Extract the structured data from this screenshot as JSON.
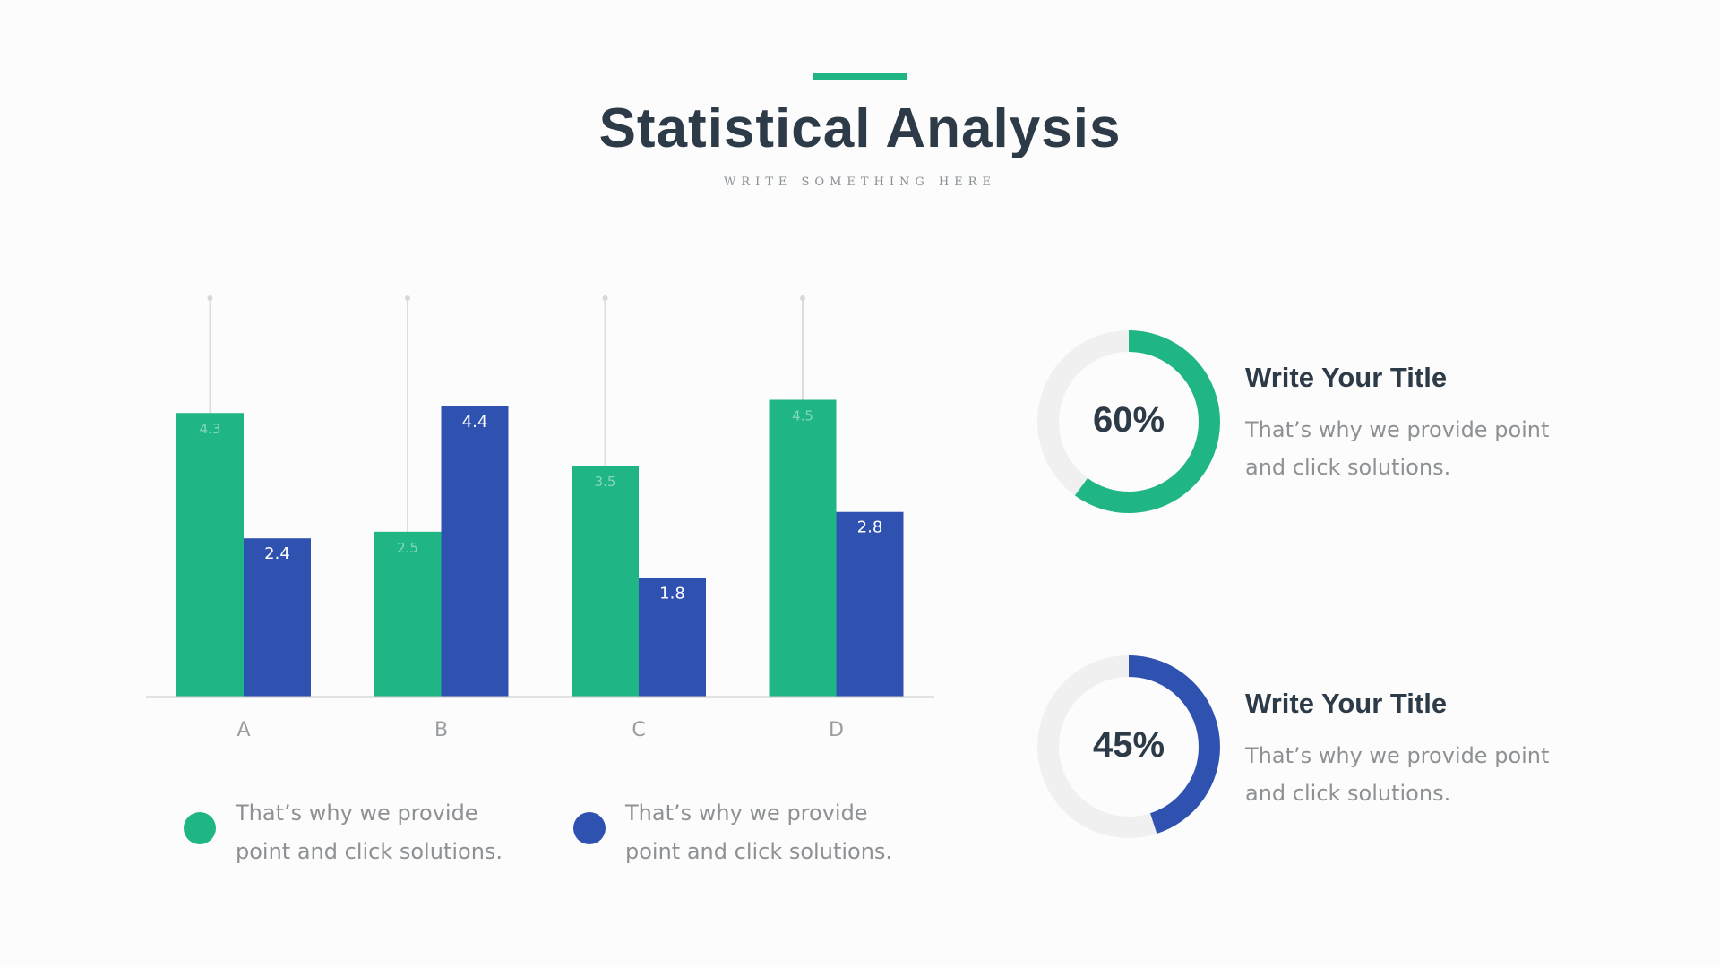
{
  "header": {
    "title": "Statistical Analysis",
    "subtitle": "WRITE SOMETHING HERE"
  },
  "colors": {
    "accent": "#1fb585",
    "green": "#1fb585",
    "blue": "#2f52b0",
    "title": "#2d3a47",
    "muted": "#8e9194",
    "track": "#f0f0f0"
  },
  "chart_data": {
    "type": "bar",
    "categories": [
      "A",
      "B",
      "C",
      "D"
    ],
    "series": [
      {
        "values": [
          4.3,
          2.5,
          3.5,
          4.5
        ],
        "color": "#1fb585"
      },
      {
        "values": [
          2.4,
          4.4,
          1.8,
          2.8
        ],
        "color": "#2f52b0"
      }
    ],
    "ylim": [
      0,
      6
    ],
    "grid": false,
    "xlabel": "",
    "ylabel": ""
  },
  "legend": [
    {
      "text": "That’s why we provide point and click solutions.",
      "color": "#1fb585"
    },
    {
      "text": "That’s why we provide point and click solutions.",
      "color": "#2f52b0"
    }
  ],
  "cards": [
    {
      "value_label": "60%",
      "fraction": 0.6,
      "color": "#1fb585",
      "title": "Write Your Title",
      "text": "That’s why we provide point and click solutions."
    },
    {
      "value_label": "45%",
      "fraction": 0.45,
      "color": "#2f52b0",
      "title": "Write Your Title",
      "text": "That’s why we provide point and click solutions."
    }
  ]
}
